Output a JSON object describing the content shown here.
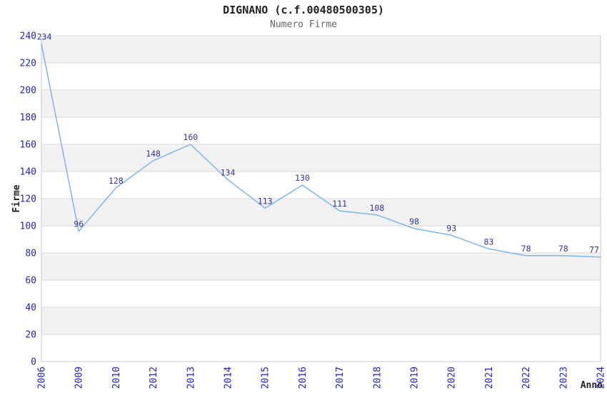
{
  "chart_data": {
    "type": "line",
    "title": "DIGNANO (c.f.00480500305)",
    "subtitle": "Numero Firme",
    "xlabel": "Anno",
    "ylabel": "Firme",
    "categories": [
      "2006",
      "2009",
      "2010",
      "2012",
      "2013",
      "2014",
      "2015",
      "2016",
      "2017",
      "2018",
      "2019",
      "2020",
      "2021",
      "2022",
      "2023",
      "2024"
    ],
    "values": [
      234,
      96,
      128,
      148,
      160,
      134,
      113,
      130,
      111,
      108,
      98,
      93,
      83,
      78,
      78,
      77
    ],
    "ylim": [
      0,
      240
    ],
    "y_tick_interval": 20,
    "grid": true,
    "legend": "none",
    "colors": {
      "line": "#7cb5ec",
      "data_label": "#333399",
      "tick_label": "#2222cc",
      "band": "#f2f2f2",
      "gridline": "#d9d9d9",
      "axis_line": "#c9c9c9",
      "title": "#222222",
      "subtitle": "#666666",
      "axis_title": "#222222"
    }
  }
}
